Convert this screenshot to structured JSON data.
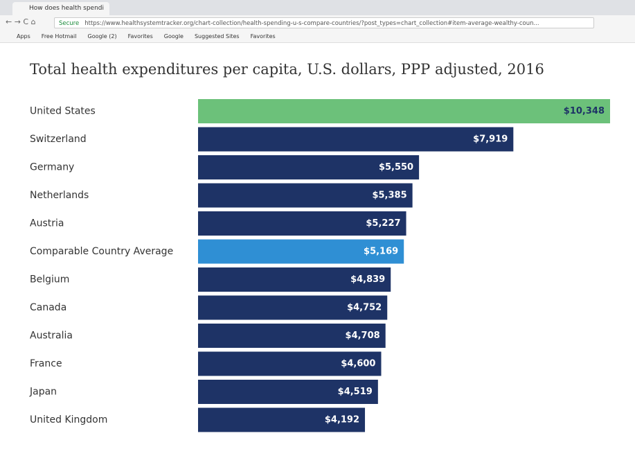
{
  "browser": {
    "tab_title": "How does health spendi",
    "secure": "Secure",
    "url": "https://www.healthsystemtracker.org/chart-collection/health-spending-u-s-compare-countries/?post_types=chart_collection#item-average-wealthy-coun...",
    "bookmarks": [
      "Apps",
      "Free Hotmail",
      "Google (2)",
      "Favorites",
      "Google",
      "Suggested Sites",
      "Favorites"
    ]
  },
  "chart_data": {
    "type": "hbar",
    "title": "Total health expenditures per capita, U.S. dollars, PPP adjusted, 2016",
    "categories": [
      "United States",
      "Switzerland",
      "Germany",
      "Netherlands",
      "Austria",
      "Comparable Country Average",
      "Belgium",
      "Canada",
      "Australia",
      "France",
      "Japan",
      "United Kingdom"
    ],
    "values": [
      10348,
      7919,
      5550,
      5385,
      5227,
      5169,
      4839,
      4752,
      4708,
      4600,
      4519,
      4192
    ],
    "value_labels": [
      "$10,348",
      "$7,919",
      "$5,550",
      "$5,385",
      "$5,227",
      "$5,169",
      "$4,839",
      "$4,752",
      "$4,708",
      "$4,600",
      "$4,519",
      "$4,192"
    ],
    "colors": [
      "#6cc17a",
      "#1e3366",
      "#1e3366",
      "#1e3366",
      "#1e3366",
      "#2f8fd4",
      "#1e3366",
      "#1e3366",
      "#1e3366",
      "#1e3366",
      "#1e3366",
      "#1e3366"
    ]
  }
}
